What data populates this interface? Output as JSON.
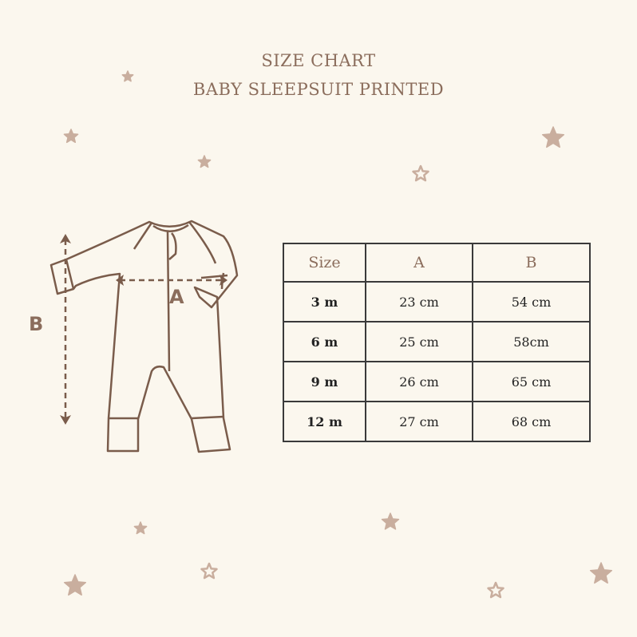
{
  "title": {
    "line1": "SIZE CHART",
    "line2": "BABY SLEEPSUIT PRINTED"
  },
  "diagram": {
    "label_a": "A",
    "label_b": "B"
  },
  "colors": {
    "background": "#fbf7ee",
    "accent": "#8b6d5c",
    "star": "#c9ae9e",
    "grid": "#3a3a3a"
  },
  "table": {
    "headers": [
      "Size",
      "A",
      "B"
    ],
    "rows": [
      [
        "3 m",
        "23 cm",
        "54 cm"
      ],
      [
        "6 m",
        "25 cm",
        "58cm"
      ],
      [
        "9 m",
        "26 cm",
        "65 cm"
      ],
      [
        "12 m",
        "27 cm",
        "68 cm"
      ]
    ]
  }
}
